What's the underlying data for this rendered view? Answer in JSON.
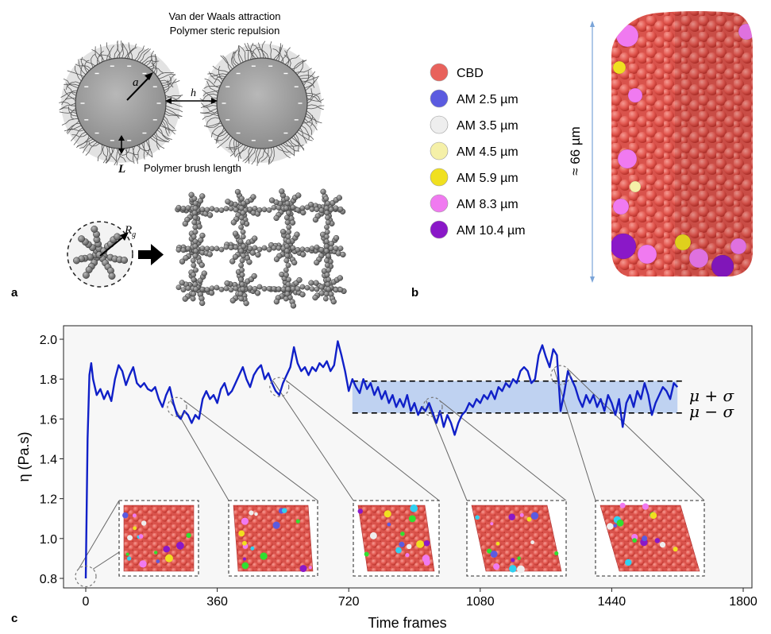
{
  "panel_a": {
    "label": "a",
    "title_line1": "Van der Waals attraction",
    "title_line2": "Polymer steric repulsion",
    "radius_symbol": "a",
    "gap_symbol": "h",
    "brush_symbol": "L",
    "brush_caption": "Polymer brush length",
    "rg_symbol": "R",
    "rg_subscript": "g"
  },
  "panel_b": {
    "label": "b",
    "height_label": "≈ 66 µm",
    "legend": [
      {
        "label": "CBD",
        "color": "#e8625c"
      },
      {
        "label": "AM 2.5 µm",
        "color": "#5b5be0"
      },
      {
        "label": "AM 3.5 µm",
        "color": "#eeeeee"
      },
      {
        "label": "AM 4.5 µm",
        "color": "#f5f0a8"
      },
      {
        "label": "AM 5.9 µm",
        "color": "#f0e020"
      },
      {
        "label": "AM 8.3 µm",
        "color": "#f07af0"
      },
      {
        "label": "AM 10.4 µm",
        "color": "#8a18c8"
      }
    ]
  },
  "panel_c": {
    "label": "c",
    "band_upper_label": "μ + σ",
    "band_lower_label": "μ − σ",
    "colors": {
      "line": "#1020c8",
      "band": "#b8cdf0",
      "plot_bg": "#f7f7f7"
    }
  },
  "chart_data": {
    "type": "line",
    "xlabel": "Time frames",
    "ylabel": "η (Pa.s)",
    "xlim": [
      -40,
      1800
    ],
    "ylim": [
      0.77,
      2.05
    ],
    "xticks": [
      0,
      360,
      720,
      1080,
      1440,
      1800
    ],
    "yticks": [
      0.8,
      1.0,
      1.2,
      1.4,
      1.6,
      1.8,
      2.0
    ],
    "band": {
      "x_start": 730,
      "x_end": 1620,
      "upper": 1.79,
      "lower": 1.63
    },
    "series": [
      {
        "x": [
          0,
          5,
          10,
          15,
          20,
          30,
          40,
          50,
          60,
          70,
          80,
          90,
          100,
          110,
          120,
          130,
          140,
          150,
          160,
          170,
          180,
          190,
          200,
          210,
          220,
          230,
          240,
          250,
          260,
          270,
          280,
          290,
          300,
          310,
          320,
          330,
          340,
          350,
          360,
          370,
          380,
          390,
          400,
          410,
          420,
          430,
          440,
          450,
          460,
          470,
          480,
          490,
          500,
          510,
          520,
          530,
          540,
          550,
          560,
          570,
          580,
          590,
          600,
          610,
          620,
          630,
          640,
          650,
          660,
          670,
          680,
          690,
          700,
          710,
          720,
          730,
          740,
          750,
          760,
          770,
          780,
          790,
          800,
          810,
          820,
          830,
          840,
          850,
          860,
          870,
          880,
          890,
          900,
          910,
          920,
          930,
          940,
          950,
          960,
          970,
          980,
          990,
          1000,
          1010,
          1020,
          1030,
          1040,
          1050,
          1060,
          1070,
          1080,
          1090,
          1100,
          1110,
          1120,
          1130,
          1140,
          1150,
          1160,
          1170,
          1180,
          1190,
          1200,
          1210,
          1220,
          1230,
          1240,
          1250,
          1260,
          1270,
          1280,
          1290,
          1300,
          1310,
          1320,
          1330,
          1340,
          1350,
          1360,
          1370,
          1380,
          1390,
          1400,
          1410,
          1420,
          1430,
          1440,
          1450,
          1460,
          1470,
          1480,
          1490,
          1500,
          1510,
          1520,
          1530,
          1540,
          1550,
          1560,
          1570,
          1580,
          1590,
          1600,
          1610,
          1620
        ],
        "y": [
          0.8,
          1.5,
          1.82,
          1.88,
          1.8,
          1.72,
          1.75,
          1.7,
          1.74,
          1.69,
          1.8,
          1.87,
          1.84,
          1.77,
          1.82,
          1.86,
          1.78,
          1.76,
          1.78,
          1.75,
          1.74,
          1.76,
          1.7,
          1.66,
          1.72,
          1.76,
          1.68,
          1.62,
          1.6,
          1.64,
          1.62,
          1.58,
          1.62,
          1.6,
          1.7,
          1.74,
          1.7,
          1.72,
          1.68,
          1.75,
          1.78,
          1.72,
          1.74,
          1.78,
          1.82,
          1.86,
          1.8,
          1.76,
          1.82,
          1.85,
          1.87,
          1.8,
          1.83,
          1.78,
          1.74,
          1.72,
          1.78,
          1.82,
          1.86,
          1.96,
          1.88,
          1.84,
          1.86,
          1.82,
          1.86,
          1.84,
          1.88,
          1.86,
          1.89,
          1.84,
          1.87,
          1.99,
          1.92,
          1.84,
          1.74,
          1.8,
          1.76,
          1.73,
          1.8,
          1.75,
          1.78,
          1.72,
          1.76,
          1.7,
          1.74,
          1.68,
          1.72,
          1.66,
          1.7,
          1.66,
          1.72,
          1.64,
          1.68,
          1.62,
          1.66,
          1.64,
          1.68,
          1.63,
          1.58,
          1.64,
          1.56,
          1.62,
          1.58,
          1.52,
          1.58,
          1.62,
          1.64,
          1.68,
          1.66,
          1.7,
          1.68,
          1.72,
          1.7,
          1.74,
          1.7,
          1.76,
          1.74,
          1.78,
          1.76,
          1.8,
          1.78,
          1.84,
          1.86,
          1.84,
          1.78,
          1.8,
          1.92,
          1.97,
          1.91,
          1.86,
          1.95,
          1.92,
          1.64,
          1.73,
          1.84,
          1.8,
          1.76,
          1.7,
          1.66,
          1.72,
          1.68,
          1.72,
          1.66,
          1.7,
          1.64,
          1.72,
          1.68,
          1.62,
          1.7,
          1.56,
          1.68,
          1.72,
          1.66,
          1.74,
          1.7,
          1.78,
          1.72,
          1.62,
          1.68,
          1.72,
          1.76,
          1.74,
          1.7,
          1.78,
          1.76
        ]
      }
    ]
  }
}
